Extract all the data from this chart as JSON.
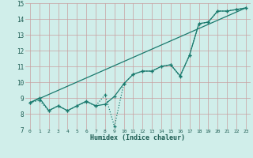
{
  "xlabel": "Humidex (Indice chaleur)",
  "bg_color": "#d0eeea",
  "grid_color": "#c8a0a0",
  "line_color": "#1a7a6e",
  "xlim": [
    -0.5,
    23.5
  ],
  "ylim": [
    7,
    15
  ],
  "xticks": [
    0,
    1,
    2,
    3,
    4,
    5,
    6,
    7,
    8,
    9,
    10,
    11,
    12,
    13,
    14,
    15,
    16,
    17,
    18,
    19,
    20,
    21,
    22,
    23
  ],
  "yticks": [
    7,
    8,
    9,
    10,
    11,
    12,
    13,
    14,
    15
  ],
  "line1_x": [
    0,
    1,
    2,
    3,
    4,
    5,
    6,
    7,
    8,
    9,
    10,
    11,
    12,
    13,
    14,
    15,
    16,
    17,
    18,
    19,
    20,
    21,
    22,
    23
  ],
  "line1_y": [
    8.7,
    9.0,
    8.2,
    8.5,
    8.2,
    8.5,
    8.8,
    8.5,
    8.6,
    9.1,
    9.9,
    10.5,
    10.7,
    10.7,
    11.0,
    11.1,
    10.4,
    11.7,
    13.7,
    13.8,
    14.5,
    14.5,
    14.6,
    14.7
  ],
  "line2_x": [
    0,
    1,
    2,
    3,
    4,
    5,
    6,
    7,
    8,
    9,
    10,
    11,
    12,
    13,
    14,
    15,
    16,
    17,
    18,
    19,
    20,
    21,
    22,
    23
  ],
  "line2_y": [
    8.7,
    8.85,
    8.2,
    8.5,
    8.2,
    8.5,
    8.75,
    8.5,
    9.2,
    7.2,
    9.9,
    10.5,
    10.7,
    10.7,
    11.0,
    11.1,
    10.35,
    11.7,
    13.7,
    13.8,
    14.5,
    14.5,
    14.6,
    14.7
  ],
  "line3_x": [
    0,
    23
  ],
  "line3_y": [
    8.7,
    14.7
  ]
}
